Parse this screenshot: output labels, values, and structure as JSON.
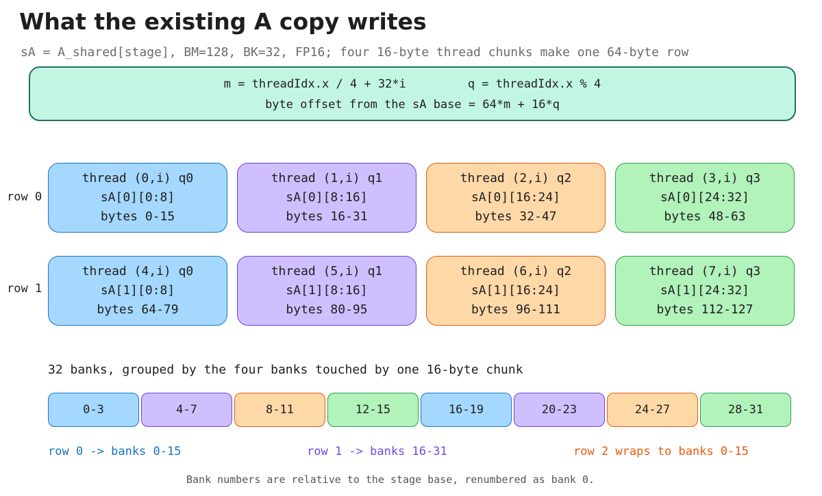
{
  "title": "What the existing A copy writes",
  "subtitle": "sA = A_shared[stage], BM=128, BK=32, FP16; four 16-byte thread chunks make one 64-byte row",
  "formula": {
    "m_expr": "m = threadIdx.x / 4 + 32*i",
    "q_expr": "q = threadIdx.x % 4",
    "offset_expr": "byte offset from the sA base = 64*m + 16*q"
  },
  "rows": [
    {
      "label": "row 0",
      "cells": [
        {
          "thread": "thread (0,i)  q0",
          "slice": "sA[0][0:8]",
          "bytes": "bytes 0-15"
        },
        {
          "thread": "thread (1,i)  q1",
          "slice": "sA[0][8:16]",
          "bytes": "bytes 16-31"
        },
        {
          "thread": "thread (2,i)  q2",
          "slice": "sA[0][16:24]",
          "bytes": "bytes 32-47"
        },
        {
          "thread": "thread (3,i)  q3",
          "slice": "sA[0][24:32]",
          "bytes": "bytes 48-63"
        }
      ]
    },
    {
      "label": "row 1",
      "cells": [
        {
          "thread": "thread (4,i)  q0",
          "slice": "sA[1][0:8]",
          "bytes": "bytes 64-79"
        },
        {
          "thread": "thread (5,i)  q1",
          "slice": "sA[1][8:16]",
          "bytes": "bytes 80-95"
        },
        {
          "thread": "thread (6,i)  q2",
          "slice": "sA[1][16:24]",
          "bytes": "bytes 96-111"
        },
        {
          "thread": "thread (7,i)  q3",
          "slice": "sA[1][24:32]",
          "bytes": "bytes 112-127"
        }
      ]
    }
  ],
  "banks": {
    "caption": "32 banks, grouped by the four banks touched by one 16-byte chunk",
    "groups": [
      "0-3",
      "4-7",
      "8-11",
      "12-15",
      "16-19",
      "20-23",
      "24-27",
      "28-31"
    ]
  },
  "legend": {
    "row0": "row 0 -> banks 0-15",
    "row1": "row 1 -> banks 16-31",
    "row2": "row 2 wraps to banks 0-15"
  },
  "footnote": "Bank numbers are relative to the stage base, renumbered as bank 0.",
  "colors": {
    "blue_fill": "#a5d8ff",
    "purple_fill": "#d0bfff",
    "orange_fill": "#ffd8a8",
    "green_fill": "#b2f2bb",
    "formula_fill": "#c3f6e2",
    "formula_border": "#1e6f67"
  }
}
